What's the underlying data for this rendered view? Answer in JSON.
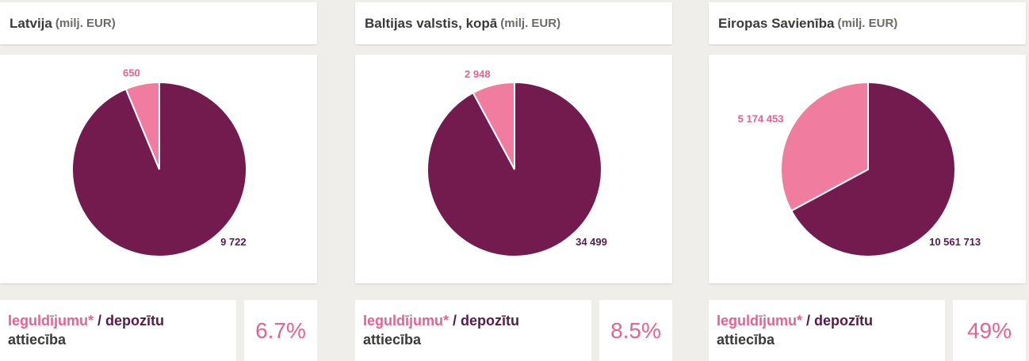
{
  "colors": {
    "investments": "#f07c9f",
    "deposits": "#731a4f",
    "ratio_value": "#e8618f",
    "investments_label": "#e8618f",
    "deposits_label": "#5a1a49"
  },
  "ratio_labels": {
    "investments": "Ieguldījumu*",
    "separator": " / ",
    "deposits": "depozītu",
    "suffix": "attiecība"
  },
  "panels": [
    {
      "title": "Latvija",
      "unit": "(milj. EUR)",
      "ratio": "6.7%",
      "chart_data": {
        "type": "pie",
        "title": "Latvija (milj. EUR)",
        "slices": [
          {
            "label": "650",
            "value": 650,
            "color": "#f07c9f"
          },
          {
            "label": "9 722",
            "value": 9722,
            "color": "#731a4f"
          }
        ]
      }
    },
    {
      "title": "Baltijas valstis, kopā",
      "unit": "(milj. EUR)",
      "ratio": "8.5%",
      "chart_data": {
        "type": "pie",
        "title": "Baltijas valstis, kopā (milj. EUR)",
        "slices": [
          {
            "label": "2 948",
            "value": 2948,
            "color": "#f07c9f"
          },
          {
            "label": "34 499",
            "value": 34499,
            "color": "#731a4f"
          }
        ]
      }
    },
    {
      "title": "Eiropas Savienība",
      "unit": "(milj. EUR)",
      "ratio": "49%",
      "chart_data": {
        "type": "pie",
        "title": "Eiropas Savienība (milj. EUR)",
        "slices": [
          {
            "label": "5 174 453",
            "value": 5174453,
            "color": "#f07c9f"
          },
          {
            "label": "10 561 713",
            "value": 10561713,
            "color": "#731a4f"
          }
        ]
      }
    }
  ]
}
